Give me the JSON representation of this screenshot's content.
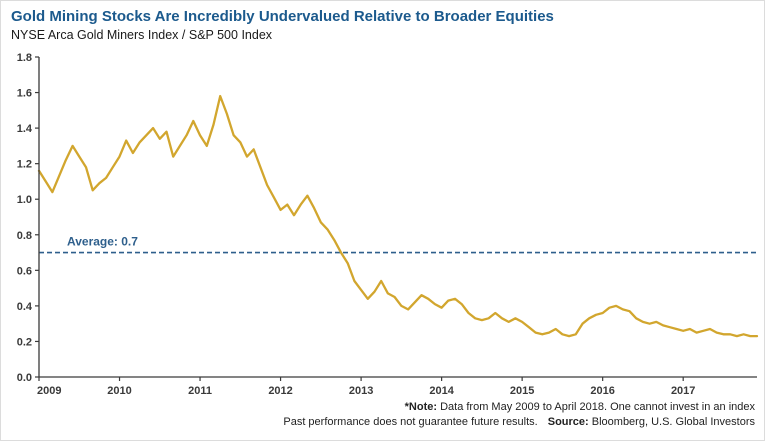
{
  "colors": {
    "title": "#1c5a8d",
    "line": "#d2a62e",
    "average": "#2e5f8c",
    "axis": "#3a3a3a",
    "tick_text": "#3a3a3a"
  },
  "footer": {
    "note_label": "*Note:",
    "note_text": " Data from May 2009 to April 2018. One cannot invest in an index",
    "performance_text": "Past performance does not guarantee future results.",
    "source_label": "Source:",
    "source_text": " Bloomberg, U.S. Global Investors"
  },
  "chart_data": {
    "type": "line",
    "title": "Gold Mining Stocks Are Incredibly Undervalued Relative to Broader Equities",
    "subtitle": "NYSE Arca Gold Miners Index / S&P 500 Index",
    "series_name": "NYSE Arca Gold Miners Index / S&P 500 Index",
    "x_start": "2009-05",
    "x_end": "2018-04",
    "frequency": "monthly",
    "ylim": [
      0.0,
      1.8
    ],
    "yticks": [
      0.0,
      0.2,
      0.4,
      0.6,
      0.8,
      1.0,
      1.2,
      1.4,
      1.6,
      1.8
    ],
    "xticks": [
      2009,
      2010,
      2011,
      2012,
      2013,
      2014,
      2015,
      2016,
      2017
    ],
    "grid": false,
    "legend": "none",
    "average": 0.7,
    "average_label": "Average: 0.7",
    "values": [
      1.16,
      1.1,
      1.04,
      1.13,
      1.22,
      1.3,
      1.24,
      1.18,
      1.05,
      1.09,
      1.12,
      1.18,
      1.24,
      1.33,
      1.26,
      1.32,
      1.36,
      1.4,
      1.34,
      1.38,
      1.24,
      1.3,
      1.36,
      1.44,
      1.36,
      1.3,
      1.42,
      1.58,
      1.48,
      1.36,
      1.32,
      1.24,
      1.28,
      1.18,
      1.08,
      1.01,
      0.94,
      0.97,
      0.91,
      0.97,
      1.02,
      0.95,
      0.87,
      0.83,
      0.77,
      0.7,
      0.64,
      0.54,
      0.49,
      0.44,
      0.48,
      0.54,
      0.47,
      0.45,
      0.4,
      0.38,
      0.42,
      0.46,
      0.44,
      0.41,
      0.39,
      0.43,
      0.44,
      0.41,
      0.36,
      0.33,
      0.32,
      0.33,
      0.36,
      0.33,
      0.31,
      0.33,
      0.31,
      0.28,
      0.25,
      0.24,
      0.25,
      0.27,
      0.24,
      0.23,
      0.24,
      0.3,
      0.33,
      0.35,
      0.36,
      0.39,
      0.4,
      0.38,
      0.37,
      0.33,
      0.31,
      0.3,
      0.31,
      0.29,
      0.28,
      0.27,
      0.26,
      0.27,
      0.25,
      0.26,
      0.27,
      0.25,
      0.24,
      0.24,
      0.23,
      0.24,
      0.23,
      0.23
    ]
  }
}
